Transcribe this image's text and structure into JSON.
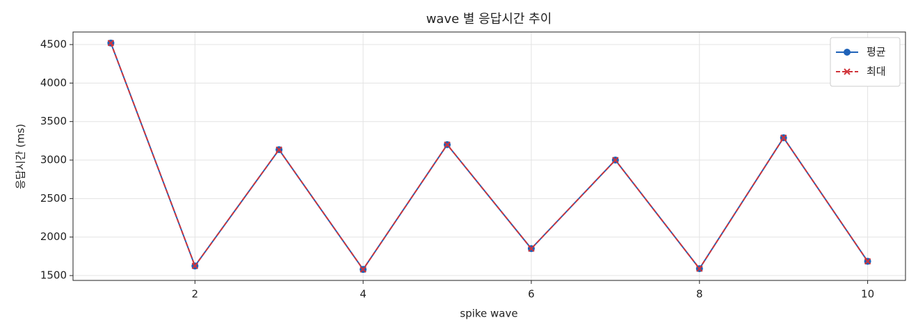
{
  "chart_data": {
    "type": "line",
    "title": "wave 별 응답시간 추이",
    "xlabel": "spike wave",
    "ylabel": "응답시간 (ms)",
    "x": [
      1,
      2,
      3,
      4,
      5,
      6,
      7,
      8,
      9,
      10
    ],
    "series": [
      {
        "name": "평균",
        "color": "#1f62b8",
        "marker": "circle",
        "dash": false,
        "values": [
          4520,
          1625,
          3135,
          1580,
          3200,
          1850,
          3000,
          1590,
          3290,
          1685
        ]
      },
      {
        "name": "최대",
        "color": "#d0343a",
        "marker": "x",
        "dash": true,
        "values": [
          4520,
          1625,
          3135,
          1580,
          3200,
          1850,
          3000,
          1590,
          3290,
          1685
        ]
      }
    ],
    "xlim": [
      0.55,
      10.45
    ],
    "xticks": [
      2,
      4,
      6,
      8,
      10
    ],
    "ylim": [
      1437,
      4663
    ],
    "yticks": [
      1500,
      2000,
      2500,
      3000,
      3500,
      4000,
      4500
    ],
    "grid": true,
    "legend": "upper right"
  }
}
